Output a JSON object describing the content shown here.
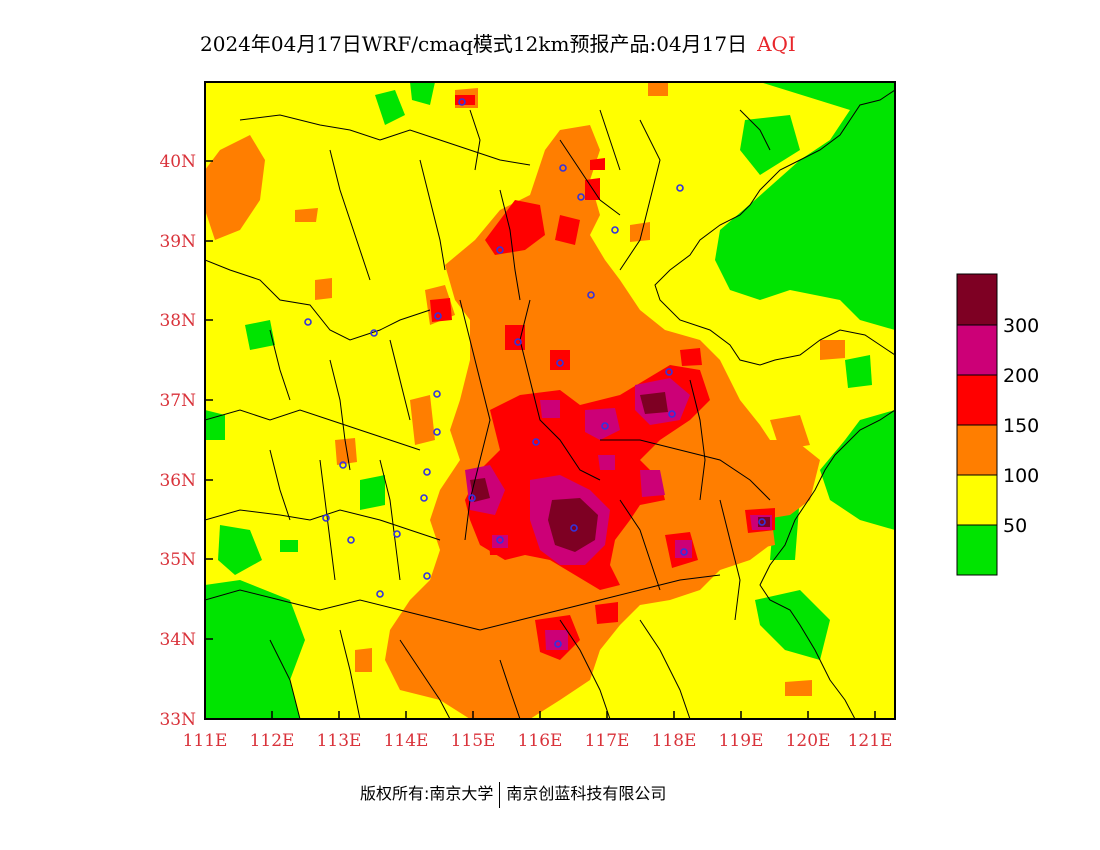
{
  "title": {
    "main": "2024年04月17日WRF/cmaq模式12km预报产品:04月17日",
    "variable": "AQI"
  },
  "footer": {
    "copyright": "版权所有:南京大学",
    "company": "南京创蓝科技有限公司"
  },
  "axes": {
    "x_ticks": [
      "111E",
      "112E",
      "113E",
      "114E",
      "115E",
      "116E",
      "117E",
      "118E",
      "119E",
      "120E",
      "121E"
    ],
    "y_ticks": [
      "33N",
      "34N",
      "35N",
      "36N",
      "37N",
      "38N",
      "39N",
      "40N"
    ]
  },
  "legend": {
    "labels": [
      "50",
      "100",
      "150",
      "200",
      "300"
    ],
    "colors": [
      "#00e400",
      "#ffff00",
      "#ff7e00",
      "#ff0000",
      "#cc0077",
      "#7e0023"
    ]
  },
  "colors": {
    "good": "#00e400",
    "moderate": "#ffff00",
    "usg": "#ff7e00",
    "unhealthy": "#ff0000",
    "very_unhealthy": "#cc0077",
    "hazardous": "#7e0023",
    "tick_text": "#d9323a"
  }
}
